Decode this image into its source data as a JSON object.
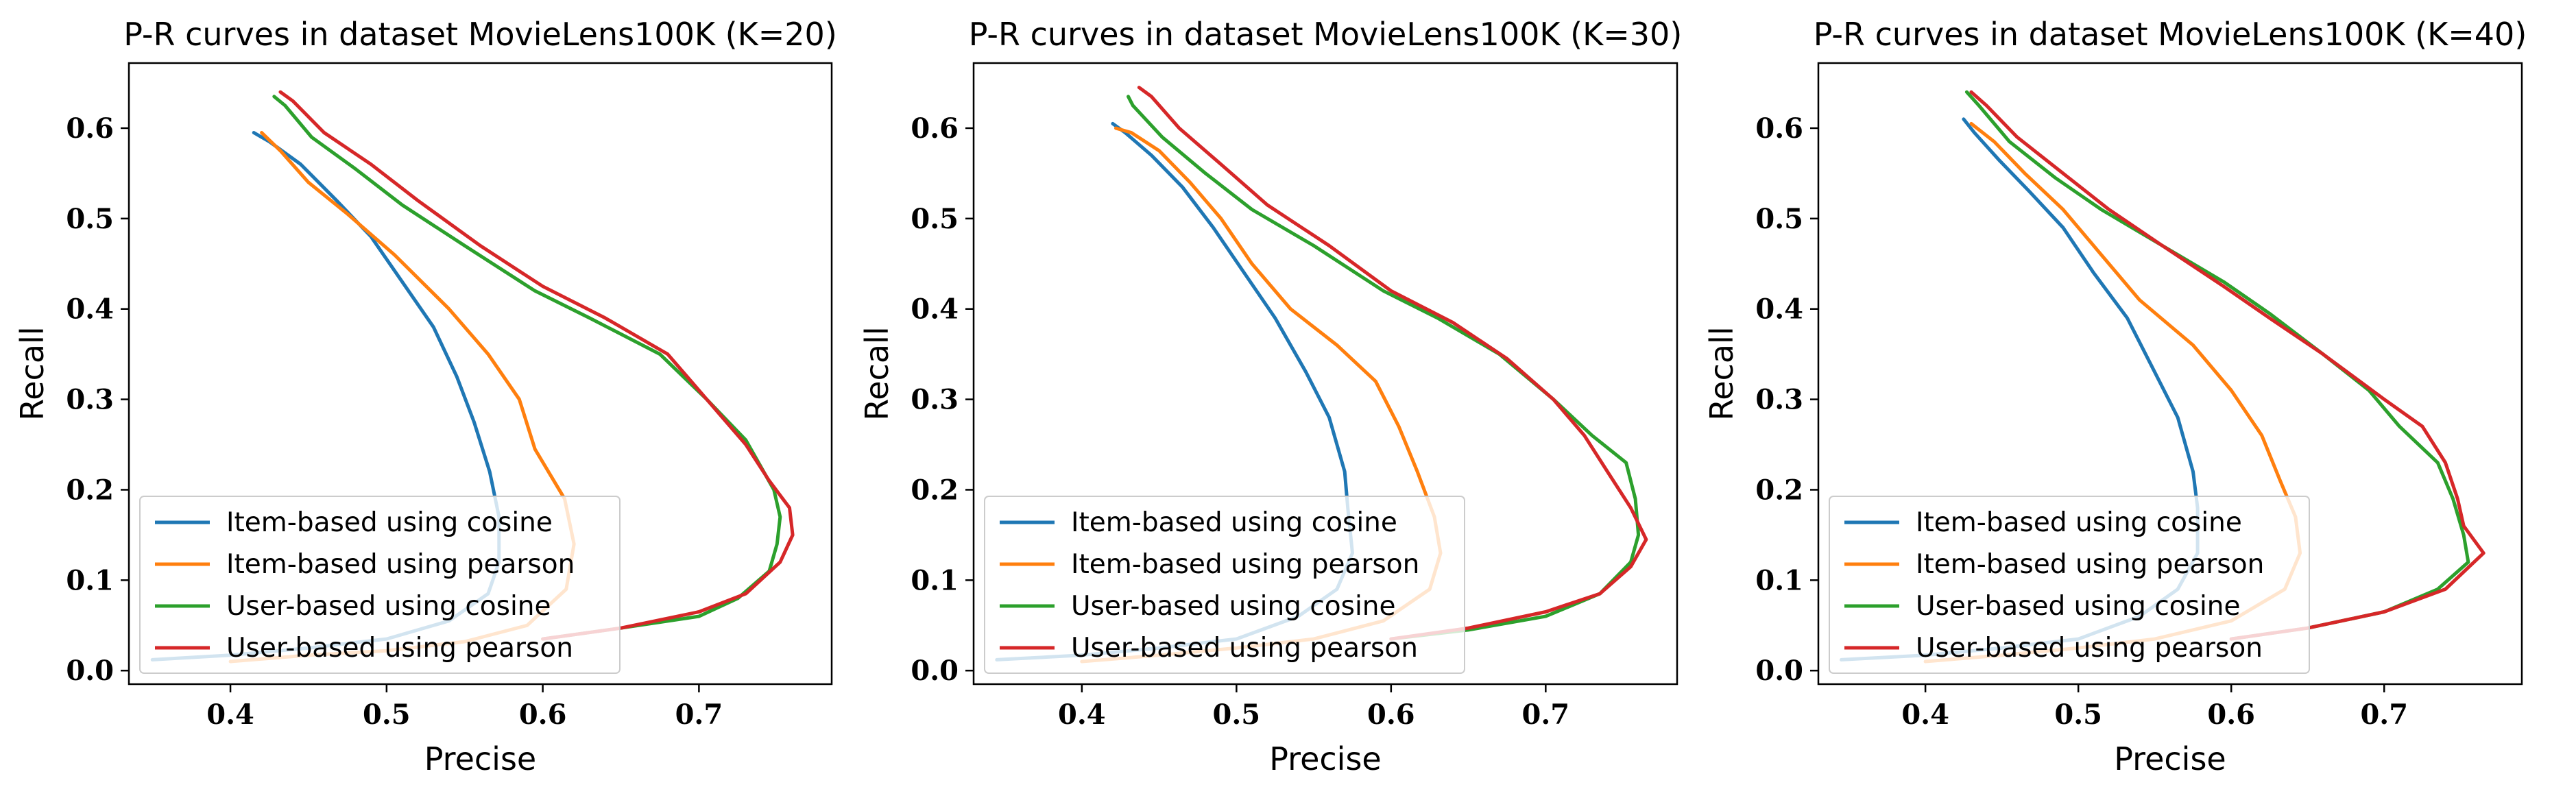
{
  "colors": {
    "item_cosine": "#1f77b4",
    "item_pearson": "#ff7f0e",
    "user_cosine": "#2ca02c",
    "user_pearson": "#d62728"
  },
  "chart_data": [
    {
      "type": "line",
      "title": "P-R curves in dataset MovieLens100K (K=20)",
      "xlabel": "Precise",
      "ylabel": "Recall",
      "xlim": [
        0.335,
        0.785
      ],
      "ylim": [
        -0.015,
        0.672
      ],
      "xticks": [
        "0.4",
        "0.5",
        "0.6",
        "0.7"
      ],
      "yticks": [
        "0.0",
        "0.1",
        "0.2",
        "0.3",
        "0.4",
        "0.5",
        "0.6"
      ],
      "legend_position": "lower-left",
      "grid": false,
      "series": [
        {
          "name": "Item-based using cosine",
          "color": "#1f77b4",
          "points": [
            [
              0.35,
              0.012
            ],
            [
              0.4,
              0.017
            ],
            [
              0.45,
              0.025
            ],
            [
              0.5,
              0.035
            ],
            [
              0.54,
              0.055
            ],
            [
              0.565,
              0.085
            ],
            [
              0.572,
              0.12
            ],
            [
              0.572,
              0.17
            ],
            [
              0.566,
              0.22
            ],
            [
              0.556,
              0.275
            ],
            [
              0.545,
              0.325
            ],
            [
              0.53,
              0.38
            ],
            [
              0.51,
              0.43
            ],
            [
              0.49,
              0.48
            ],
            [
              0.468,
              0.52
            ],
            [
              0.445,
              0.56
            ],
            [
              0.425,
              0.585
            ],
            [
              0.415,
              0.595
            ]
          ]
        },
        {
          "name": "Item-based using pearson",
          "color": "#ff7f0e",
          "points": [
            [
              0.4,
              0.01
            ],
            [
              0.45,
              0.017
            ],
            [
              0.5,
              0.022
            ],
            [
              0.55,
              0.032
            ],
            [
              0.59,
              0.05
            ],
            [
              0.615,
              0.09
            ],
            [
              0.62,
              0.14
            ],
            [
              0.614,
              0.19
            ],
            [
              0.595,
              0.245
            ],
            [
              0.585,
              0.3
            ],
            [
              0.565,
              0.35
            ],
            [
              0.54,
              0.4
            ],
            [
              0.505,
              0.46
            ],
            [
              0.475,
              0.505
            ],
            [
              0.45,
              0.54
            ],
            [
              0.432,
              0.575
            ],
            [
              0.42,
              0.595
            ]
          ]
        },
        {
          "name": "User-based using cosine",
          "color": "#2ca02c",
          "points": [
            [
              0.6,
              0.035
            ],
            [
              0.65,
              0.047
            ],
            [
              0.7,
              0.06
            ],
            [
              0.725,
              0.08
            ],
            [
              0.745,
              0.11
            ],
            [
              0.75,
              0.14
            ],
            [
              0.752,
              0.17
            ],
            [
              0.748,
              0.2
            ],
            [
              0.73,
              0.255
            ],
            [
              0.705,
              0.3
            ],
            [
              0.675,
              0.35
            ],
            [
              0.63,
              0.39
            ],
            [
              0.595,
              0.42
            ],
            [
              0.55,
              0.47
            ],
            [
              0.51,
              0.515
            ],
            [
              0.48,
              0.555
            ],
            [
              0.452,
              0.59
            ],
            [
              0.435,
              0.625
            ],
            [
              0.428,
              0.635
            ]
          ]
        },
        {
          "name": "User-based using pearson",
          "color": "#d62728",
          "points": [
            [
              0.6,
              0.035
            ],
            [
              0.65,
              0.047
            ],
            [
              0.7,
              0.065
            ],
            [
              0.73,
              0.085
            ],
            [
              0.752,
              0.12
            ],
            [
              0.76,
              0.15
            ],
            [
              0.758,
              0.18
            ],
            [
              0.745,
              0.21
            ],
            [
              0.73,
              0.25
            ],
            [
              0.705,
              0.3
            ],
            [
              0.68,
              0.35
            ],
            [
              0.64,
              0.39
            ],
            [
              0.6,
              0.425
            ],
            [
              0.56,
              0.47
            ],
            [
              0.52,
              0.52
            ],
            [
              0.49,
              0.56
            ],
            [
              0.46,
              0.595
            ],
            [
              0.44,
              0.63
            ],
            [
              0.432,
              0.64
            ]
          ]
        }
      ]
    },
    {
      "type": "line",
      "title": "P-R curves in dataset MovieLens100K (K=30)",
      "xlabel": "Precise",
      "ylabel": "Recall",
      "xlim": [
        0.33,
        0.785
      ],
      "ylim": [
        -0.015,
        0.672
      ],
      "xticks": [
        "0.4",
        "0.5",
        "0.6",
        "0.7"
      ],
      "yticks": [
        "0.0",
        "0.1",
        "0.2",
        "0.3",
        "0.4",
        "0.5",
        "0.6"
      ],
      "legend_position": "lower-left",
      "grid": false,
      "series": [
        {
          "name": "Item-based using cosine",
          "color": "#1f77b4",
          "points": [
            [
              0.345,
              0.012
            ],
            [
              0.4,
              0.017
            ],
            [
              0.45,
              0.025
            ],
            [
              0.5,
              0.035
            ],
            [
              0.54,
              0.06
            ],
            [
              0.565,
              0.09
            ],
            [
              0.575,
              0.13
            ],
            [
              0.572,
              0.18
            ],
            [
              0.57,
              0.22
            ],
            [
              0.56,
              0.28
            ],
            [
              0.545,
              0.33
            ],
            [
              0.525,
              0.39
            ],
            [
              0.505,
              0.44
            ],
            [
              0.485,
              0.49
            ],
            [
              0.465,
              0.535
            ],
            [
              0.445,
              0.57
            ],
            [
              0.428,
              0.595
            ],
            [
              0.42,
              0.605
            ]
          ]
        },
        {
          "name": "Item-based using pearson",
          "color": "#ff7f0e",
          "points": [
            [
              0.4,
              0.01
            ],
            [
              0.45,
              0.017
            ],
            [
              0.5,
              0.025
            ],
            [
              0.55,
              0.035
            ],
            [
              0.595,
              0.055
            ],
            [
              0.625,
              0.09
            ],
            [
              0.632,
              0.13
            ],
            [
              0.628,
              0.17
            ],
            [
              0.617,
              0.22
            ],
            [
              0.605,
              0.27
            ],
            [
              0.59,
              0.32
            ],
            [
              0.565,
              0.36
            ],
            [
              0.535,
              0.4
            ],
            [
              0.51,
              0.45
            ],
            [
              0.49,
              0.5
            ],
            [
              0.47,
              0.54
            ],
            [
              0.45,
              0.575
            ],
            [
              0.432,
              0.595
            ],
            [
              0.422,
              0.6
            ]
          ]
        },
        {
          "name": "User-based using cosine",
          "color": "#2ca02c",
          "points": [
            [
              0.6,
              0.035
            ],
            [
              0.65,
              0.045
            ],
            [
              0.7,
              0.06
            ],
            [
              0.735,
              0.085
            ],
            [
              0.755,
              0.12
            ],
            [
              0.76,
              0.15
            ],
            [
              0.758,
              0.19
            ],
            [
              0.752,
              0.23
            ],
            [
              0.73,
              0.26
            ],
            [
              0.705,
              0.3
            ],
            [
              0.67,
              0.35
            ],
            [
              0.63,
              0.39
            ],
            [
              0.595,
              0.42
            ],
            [
              0.55,
              0.47
            ],
            [
              0.51,
              0.51
            ],
            [
              0.48,
              0.55
            ],
            [
              0.452,
              0.59
            ],
            [
              0.433,
              0.625
            ],
            [
              0.43,
              0.635
            ]
          ]
        },
        {
          "name": "User-based using pearson",
          "color": "#d62728",
          "points": [
            [
              0.6,
              0.035
            ],
            [
              0.65,
              0.047
            ],
            [
              0.7,
              0.065
            ],
            [
              0.735,
              0.085
            ],
            [
              0.755,
              0.115
            ],
            [
              0.765,
              0.145
            ],
            [
              0.755,
              0.18
            ],
            [
              0.74,
              0.22
            ],
            [
              0.725,
              0.26
            ],
            [
              0.705,
              0.3
            ],
            [
              0.675,
              0.345
            ],
            [
              0.64,
              0.385
            ],
            [
              0.6,
              0.42
            ],
            [
              0.56,
              0.47
            ],
            [
              0.52,
              0.515
            ],
            [
              0.49,
              0.56
            ],
            [
              0.463,
              0.6
            ],
            [
              0.445,
              0.635
            ],
            [
              0.437,
              0.645
            ]
          ]
        }
      ]
    },
    {
      "type": "line",
      "title": "P-R curves in dataset MovieLens100K (K=40)",
      "xlabel": "Precise",
      "ylabel": "Recall",
      "xlim": [
        0.33,
        0.79
      ],
      "ylim": [
        -0.015,
        0.672
      ],
      "xticks": [
        "0.4",
        "0.5",
        "0.6",
        "0.7"
      ],
      "yticks": [
        "0.0",
        "0.1",
        "0.2",
        "0.3",
        "0.4",
        "0.5",
        "0.6"
      ],
      "legend_position": "lower-left",
      "grid": false,
      "series": [
        {
          "name": "Item-based using cosine",
          "color": "#1f77b4",
          "points": [
            [
              0.345,
              0.012
            ],
            [
              0.4,
              0.017
            ],
            [
              0.45,
              0.025
            ],
            [
              0.5,
              0.035
            ],
            [
              0.54,
              0.06
            ],
            [
              0.565,
              0.09
            ],
            [
              0.578,
              0.13
            ],
            [
              0.578,
              0.18
            ],
            [
              0.575,
              0.22
            ],
            [
              0.565,
              0.28
            ],
            [
              0.55,
              0.33
            ],
            [
              0.532,
              0.39
            ],
            [
              0.51,
              0.44
            ],
            [
              0.49,
              0.49
            ],
            [
              0.468,
              0.53
            ],
            [
              0.448,
              0.565
            ],
            [
              0.432,
              0.595
            ],
            [
              0.425,
              0.61
            ]
          ]
        },
        {
          "name": "Item-based using pearson",
          "color": "#ff7f0e",
          "points": [
            [
              0.4,
              0.01
            ],
            [
              0.45,
              0.017
            ],
            [
              0.5,
              0.025
            ],
            [
              0.55,
              0.035
            ],
            [
              0.6,
              0.055
            ],
            [
              0.635,
              0.09
            ],
            [
              0.645,
              0.13
            ],
            [
              0.642,
              0.17
            ],
            [
              0.632,
              0.21
            ],
            [
              0.62,
              0.26
            ],
            [
              0.6,
              0.31
            ],
            [
              0.575,
              0.36
            ],
            [
              0.54,
              0.41
            ],
            [
              0.515,
              0.46
            ],
            [
              0.49,
              0.51
            ],
            [
              0.465,
              0.55
            ],
            [
              0.445,
              0.585
            ],
            [
              0.43,
              0.605
            ]
          ]
        },
        {
          "name": "User-based using cosine",
          "color": "#2ca02c",
          "points": [
            [
              0.6,
              0.035
            ],
            [
              0.65,
              0.047
            ],
            [
              0.7,
              0.065
            ],
            [
              0.735,
              0.09
            ],
            [
              0.755,
              0.12
            ],
            [
              0.752,
              0.15
            ],
            [
              0.745,
              0.19
            ],
            [
              0.735,
              0.23
            ],
            [
              0.71,
              0.27
            ],
            [
              0.69,
              0.31
            ],
            [
              0.66,
              0.35
            ],
            [
              0.625,
              0.395
            ],
            [
              0.595,
              0.43
            ],
            [
              0.555,
              0.47
            ],
            [
              0.515,
              0.51
            ],
            [
              0.485,
              0.545
            ],
            [
              0.455,
              0.585
            ],
            [
              0.435,
              0.625
            ],
            [
              0.427,
              0.64
            ]
          ]
        },
        {
          "name": "User-based using pearson",
          "color": "#d62728",
          "points": [
            [
              0.6,
              0.035
            ],
            [
              0.65,
              0.047
            ],
            [
              0.7,
              0.065
            ],
            [
              0.74,
              0.09
            ],
            [
              0.765,
              0.13
            ],
            [
              0.752,
              0.16
            ],
            [
              0.748,
              0.19
            ],
            [
              0.74,
              0.23
            ],
            [
              0.725,
              0.27
            ],
            [
              0.7,
              0.3
            ],
            [
              0.66,
              0.35
            ],
            [
              0.625,
              0.39
            ],
            [
              0.595,
              0.425
            ],
            [
              0.555,
              0.47
            ],
            [
              0.52,
              0.51
            ],
            [
              0.49,
              0.55
            ],
            [
              0.46,
              0.59
            ],
            [
              0.44,
              0.625
            ],
            [
              0.43,
              0.64
            ]
          ]
        }
      ]
    }
  ]
}
